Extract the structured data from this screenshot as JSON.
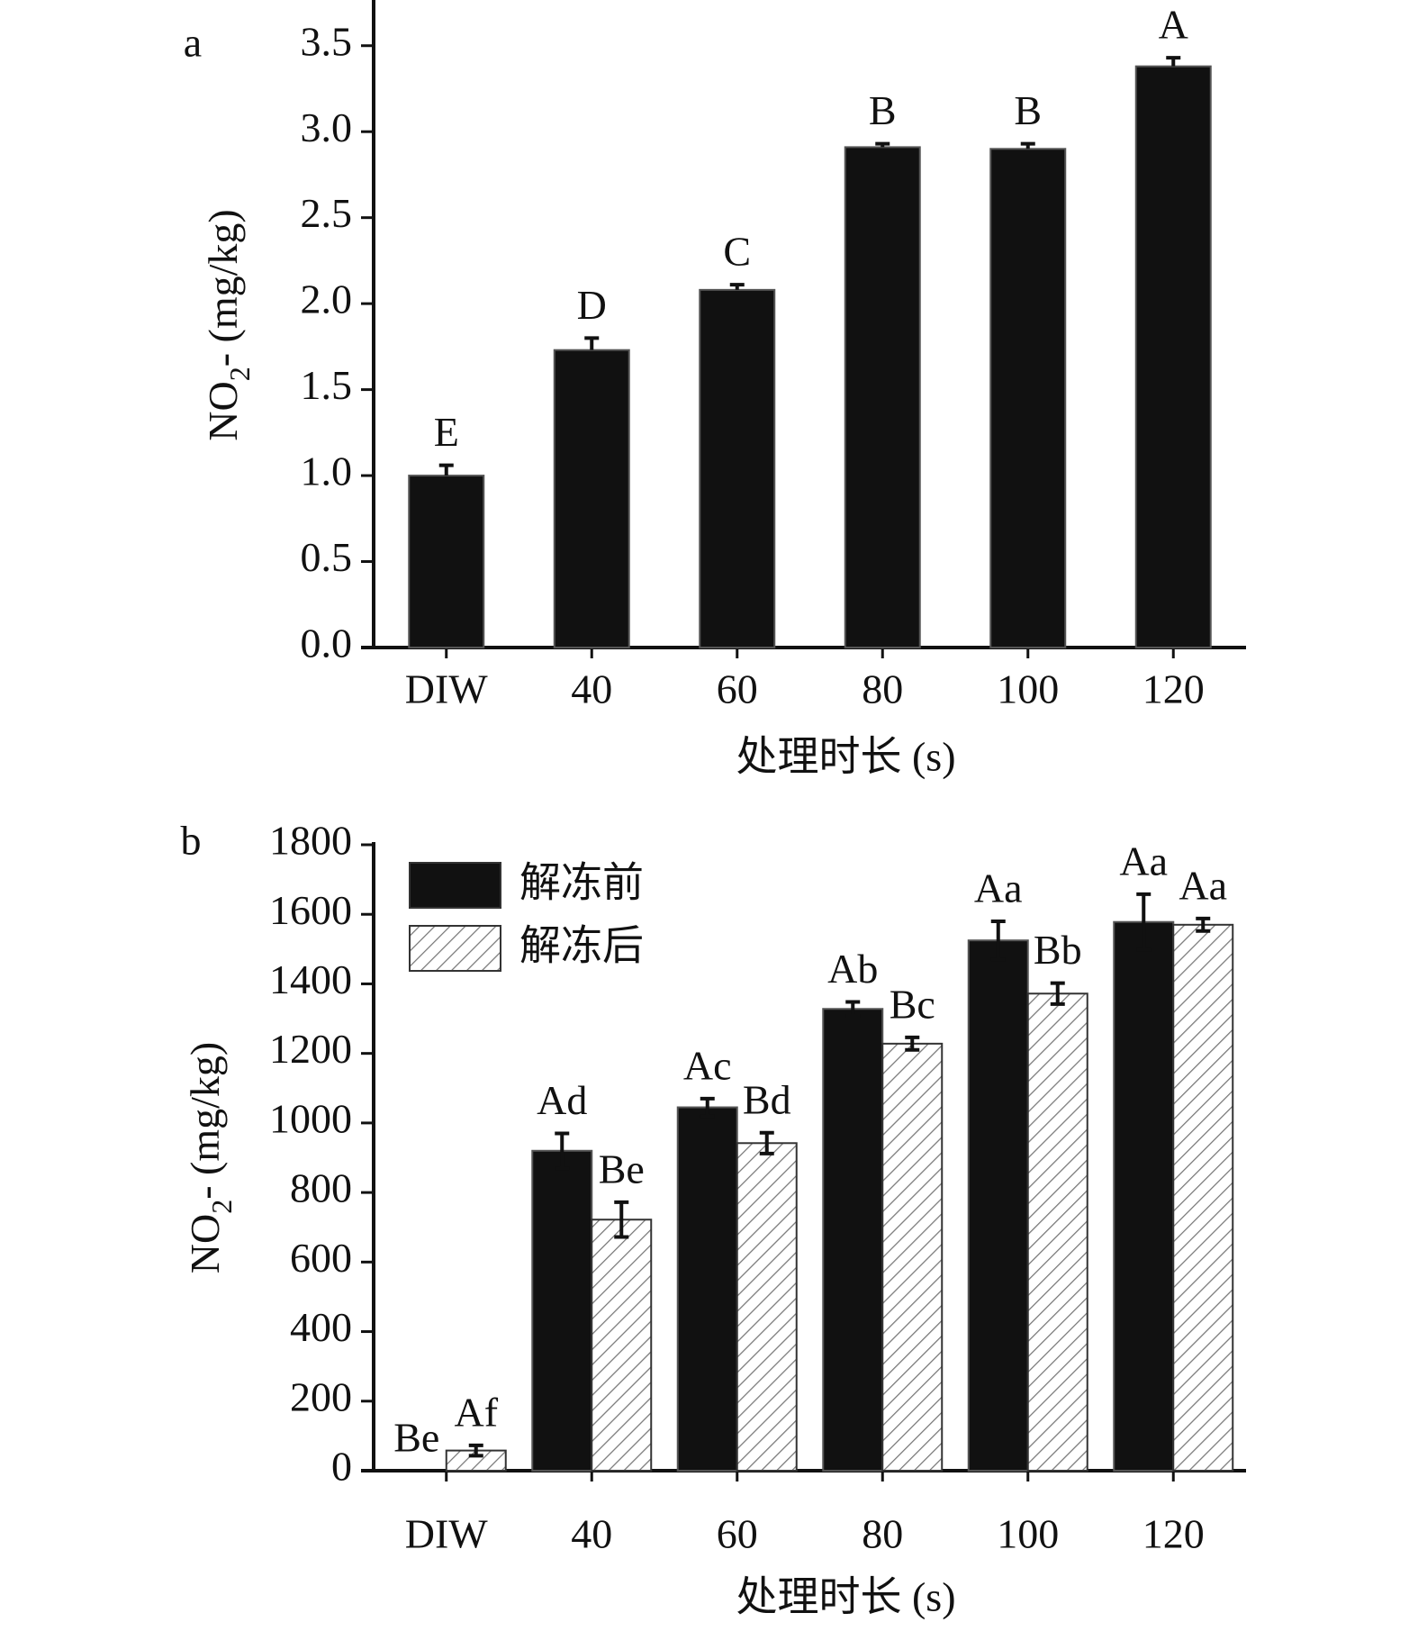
{
  "chart_data": [
    {
      "type": "bar",
      "panel_label": "a",
      "y_label": [
        "NO",
        "2",
        "- (mg/kg)"
      ],
      "x_label": "处理时长 (s)",
      "categories": [
        "DIW",
        "40",
        "60",
        "80",
        "100",
        "120"
      ],
      "series": [
        {
          "name": null,
          "color": "#111111",
          "pattern": "solid",
          "values": [
            1.0,
            1.73,
            2.08,
            2.91,
            2.9,
            3.38
          ],
          "errors": [
            0.06,
            0.07,
            0.03,
            0.02,
            0.03,
            0.05
          ],
          "labels": [
            "E",
            "D",
            "C",
            "B",
            "B",
            "A"
          ]
        }
      ],
      "ylim": [
        0,
        3.75
      ],
      "yticks": [
        {
          "value": 0,
          "label": "0.0"
        },
        0.5,
        {
          "value": 1,
          "label": "1.0"
        },
        1.5,
        {
          "value": 2,
          "label": "2.0"
        },
        2.5,
        {
          "value": 3,
          "label": "3.0"
        },
        3.5
      ]
    },
    {
      "type": "bar",
      "panel_label": "b",
      "y_label": [
        "NO",
        "2",
        "- (mg/kg)"
      ],
      "x_label": "处理时长 (s)",
      "categories": [
        "DIW",
        "40",
        "60",
        "80",
        "100",
        "120"
      ],
      "legend": "upper left",
      "series": [
        {
          "name": "解冻前",
          "color": "#111111",
          "pattern": "solid",
          "values": [
            0,
            920,
            1045,
            1328,
            1525,
            1578
          ],
          "errors": [
            0,
            50,
            25,
            20,
            55,
            80
          ],
          "labels": [
            "Be",
            "Ad",
            "Ac",
            "Ab",
            "Aa",
            "Aa"
          ]
        },
        {
          "name": "解冻后",
          "color": "#ffffff",
          "pattern": "hatch",
          "values": [
            58,
            722,
            942,
            1228,
            1372,
            1570
          ],
          "errors": [
            15,
            50,
            30,
            18,
            30,
            18
          ],
          "labels": [
            "Af",
            "Be",
            "Bd",
            "Bc",
            "Bb",
            "Aa"
          ]
        }
      ],
      "ylim": [
        0,
        1800
      ],
      "yticks": [
        0,
        200,
        400,
        600,
        800,
        1000,
        1200,
        1400,
        1600,
        1800
      ]
    }
  ]
}
